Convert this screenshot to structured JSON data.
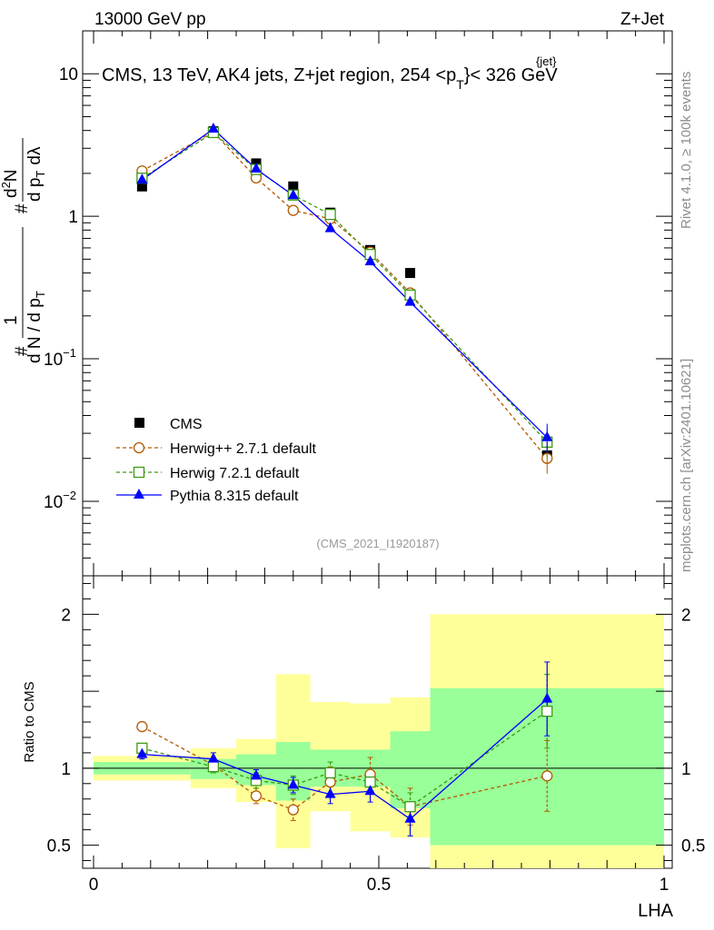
{
  "header": {
    "energy": "13000 GeV pp",
    "process": "Z+Jet"
  },
  "side_labels": {
    "rivet": "Rivet 4.1.0, ≥ 100k events",
    "mcplots": "mcplots.cern.ch [arXiv:2401.10621]"
  },
  "chart_data": {
    "type": "line",
    "title": "CMS, 13 TeV, AK4 jets, Z+jet region, 254 <p_T^{jet}< 326 GeV",
    "title_parts": {
      "main": "CMS, 13 TeV, AK4 jets, Z+jet region, 254 <p",
      "sub": "T",
      "sup": "{jet}",
      "end": "}< 326 GeV"
    },
    "analysis_id": "(CMS_2021_I1920187)",
    "xlabel": "LHA",
    "ylabel": "1/dN/dp_T d^2N/dp_T dλ",
    "ylabel_parts": {
      "num_hash": "#",
      "one": "1",
      "den": "d N / d p",
      "den_sub": "T",
      "hash2": "#",
      "dn": "d",
      "sup": "2",
      "n": "N",
      "dp": "d p",
      "dp_sub": "T",
      "dlam": "dλ"
    },
    "ratio_ylabel": "Ratio to CMS",
    "xlim": [
      0,
      1
    ],
    "ylim": [
      0.003,
      20
    ],
    "ratio_ylim": [
      0.35,
      2.25
    ],
    "y_scale": "log",
    "x_ticks": [
      "0",
      "0.5",
      "1"
    ],
    "y_ticks": [
      {
        "value": 0.01,
        "base": "10",
        "exp": "−2"
      },
      {
        "value": 0.1,
        "base": "10",
        "exp": "−1"
      },
      {
        "value": 1,
        "base": "1",
        "exp": ""
      },
      {
        "value": 10,
        "base": "10",
        "exp": ""
      }
    ],
    "ratio_ticks": [
      {
        "value": 0.5,
        "label": "0.5"
      },
      {
        "value": 1,
        "label": "1"
      },
      {
        "value": 2,
        "label": "2"
      }
    ],
    "legend_position": "lower-left",
    "bins": [
      [
        0.0,
        0.17
      ],
      [
        0.17,
        0.25
      ],
      [
        0.25,
        0.32
      ],
      [
        0.32,
        0.38
      ],
      [
        0.38,
        0.45
      ],
      [
        0.45,
        0.52
      ],
      [
        0.52,
        0.59
      ],
      [
        0.59,
        1.0
      ]
    ],
    "x": [
      0.085,
      0.21,
      0.285,
      0.35,
      0.415,
      0.485,
      0.555,
      0.795
    ],
    "data": {
      "name": "CMS",
      "values": [
        1.62,
        3.95,
        2.35,
        1.62,
        1.06,
        0.58,
        0.4,
        0.021
      ]
    },
    "series": [
      {
        "name": "Herwig++ 2.7.1 default",
        "color": "#b35900",
        "marker": "open-circle",
        "dash": "dashed",
        "values": [
          2.08,
          3.9,
          1.86,
          1.1,
          0.96,
          0.56,
          0.29,
          0.02
        ],
        "ratio": [
          1.27,
          1.02,
          0.82,
          0.73,
          0.91,
          0.96,
          0.75,
          0.95
        ],
        "ratio_err": [
          0.03,
          0.04,
          0.05,
          0.07,
          0.1,
          0.11,
          0.12,
          0.23
        ]
      },
      {
        "name": "Herwig 7.2.1 default",
        "color": "#3a9a10",
        "marker": "open-square",
        "dash": "dashed",
        "values": [
          1.85,
          3.87,
          2.13,
          1.41,
          1.03,
          0.54,
          0.28,
          0.026
        ],
        "ratio": [
          1.13,
          1.01,
          0.92,
          0.89,
          0.97,
          0.91,
          0.75,
          1.37
        ],
        "ratio_err": [
          0.03,
          0.04,
          0.05,
          0.06,
          0.07,
          0.07,
          0.09,
          0.24
        ]
      },
      {
        "name": "Pythia 8.315 default",
        "color": "#0000ff",
        "marker": "filled-triangle",
        "dash": "solid",
        "values": [
          1.8,
          4.1,
          2.15,
          1.4,
          0.82,
          0.48,
          0.25,
          0.028
        ],
        "ratio": [
          1.09,
          1.06,
          0.95,
          0.89,
          0.83,
          0.85,
          0.67,
          1.45
        ],
        "ratio_err": [
          0.03,
          0.04,
          0.04,
          0.05,
          0.06,
          0.07,
          0.11,
          0.24
        ]
      }
    ],
    "uncertainty_bands": {
      "green_low": [
        0.96,
        0.93,
        0.89,
        0.79,
        0.88,
        0.88,
        0.74,
        0.5
      ],
      "green_high": [
        1.04,
        1.06,
        1.09,
        1.17,
        1.12,
        1.12,
        1.24,
        1.52
      ],
      "yellow_low": [
        0.92,
        0.87,
        0.78,
        0.48,
        0.72,
        0.59,
        0.55,
        0.35
      ],
      "yellow_high": [
        1.08,
        1.13,
        1.19,
        1.61,
        1.43,
        1.42,
        1.46,
        2.0
      ]
    }
  }
}
